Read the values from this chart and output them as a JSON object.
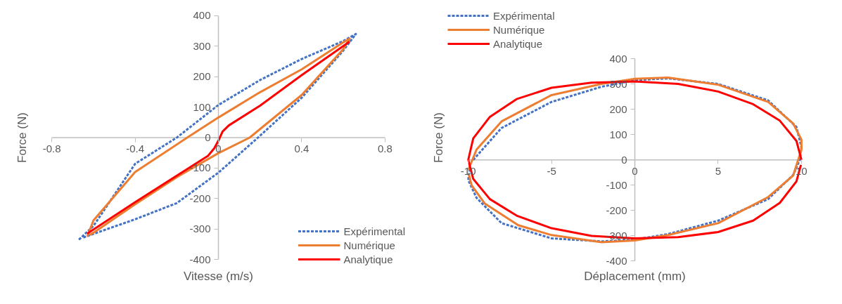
{
  "chart_data": [
    {
      "type": "line",
      "xlabel": "Vitesse (m/s)",
      "ylabel": "Force (N)",
      "xlim": [
        -0.8,
        0.8
      ],
      "xticks": [
        -0.8,
        -0.4,
        0,
        0.4,
        0.8
      ],
      "ylim": [
        -400,
        400
      ],
      "yticks": [
        -400,
        -300,
        -200,
        -100,
        0,
        100,
        200,
        300,
        400
      ],
      "grid": false,
      "legend": "bottom right",
      "marker": "none",
      "series": [
        {
          "name": "Expérimental",
          "color": "#4472c4",
          "line_style": "dashed",
          "x": [
            -0.67,
            -0.6,
            -0.4,
            -0.2,
            0,
            0.2,
            0.4,
            0.6,
            0.66,
            0.6,
            0.4,
            0.19,
            0,
            -0.2,
            -0.4,
            -0.6,
            -0.65
          ],
          "values": [
            -335,
            -290,
            -86,
            0,
            107,
            189,
            258,
            317,
            340,
            286,
            131,
            0,
            -115,
            -215,
            -268,
            -316,
            -328
          ]
        },
        {
          "name": "Numérique",
          "color": "#ed7d31",
          "line_style": "solid",
          "x": [
            -0.63,
            -0.6,
            -0.4,
            -0.15,
            0,
            0.2,
            0.4,
            0.6,
            0.63,
            0.6,
            0.4,
            0.15,
            0,
            -0.2,
            -0.4,
            -0.6,
            -0.62
          ],
          "values": [
            -325,
            -272,
            -113,
            0,
            66,
            149,
            224,
            313,
            325,
            291,
            140,
            0,
            -51,
            -130,
            -219,
            -312,
            -320
          ]
        },
        {
          "name": "Analytique",
          "color": "#ff0000",
          "line_style": "solid",
          "x": [
            -0.63,
            -0.4,
            -0.2,
            -0.05,
            -0.02,
            0,
            0.02,
            0.05,
            0.2,
            0.4,
            0.63
          ],
          "values": [
            -315,
            -212,
            -125,
            -60,
            -35,
            -10,
            20,
            40,
            105,
            205,
            315
          ]
        }
      ]
    },
    {
      "type": "line",
      "xlabel": "Déplacement (mm)",
      "ylabel": "Force (N)",
      "xlim": [
        -10,
        10
      ],
      "xticks": [
        -10,
        -5,
        0,
        5,
        10
      ],
      "ylim": [
        -400,
        400
      ],
      "yticks": [
        -400,
        -300,
        -200,
        -100,
        0,
        100,
        200,
        300,
        400
      ],
      "grid": false,
      "legend": "top left",
      "marker": "none",
      "series": [
        {
          "name": "Expérimental",
          "color": "#4472c4",
          "line_style": "dashed",
          "x": [
            -9.7,
            -8,
            -5,
            -2,
            0,
            2,
            5,
            8,
            9.7,
            10,
            9.9,
            9.5,
            8,
            5,
            2,
            0,
            -2,
            -5,
            -8,
            -9.5,
            -10,
            -9.9
          ],
          "values": [
            0,
            126,
            229,
            289,
            315,
            322,
            300,
            235,
            130,
            50,
            0,
            -60,
            -155,
            -240,
            -293,
            -315,
            -322,
            -310,
            -250,
            -150,
            -80,
            -30
          ]
        },
        {
          "name": "Numérique",
          "color": "#ed7d31",
          "line_style": "solid",
          "x": [
            -10,
            -9.5,
            -8,
            -5,
            -2,
            0,
            2,
            5,
            8,
            9.5,
            10,
            10,
            9.5,
            8,
            5,
            2,
            0,
            -2,
            -5,
            -7,
            -9,
            -9.8,
            -9.97
          ],
          "values": [
            -40,
            41,
            152,
            256,
            300,
            320,
            325,
            297,
            229,
            144,
            80,
            40,
            -62,
            -147,
            -250,
            -297,
            -318,
            -325,
            -297,
            -258,
            -173,
            -100,
            -55
          ]
        },
        {
          "name": "Analytique",
          "color": "#ff0000",
          "line_style": "solid",
          "x": [
            10,
            9.7,
            8.7,
            7.1,
            5,
            2.6,
            0,
            -2.6,
            -5,
            -7.1,
            -8.7,
            -9.7,
            -10,
            -9.7,
            -8.7,
            -7.1,
            -5,
            -2.6,
            0,
            2.6,
            5,
            7.1,
            8.7,
            9.7,
            9.97
          ],
          "values": [
            0,
            75,
            155,
            220,
            270,
            300,
            310,
            305,
            285,
            240,
            170,
            85,
            0,
            -75,
            -155,
            -220,
            -270,
            -300,
            -310,
            -305,
            -285,
            -240,
            -170,
            -85,
            -20
          ]
        }
      ]
    }
  ]
}
